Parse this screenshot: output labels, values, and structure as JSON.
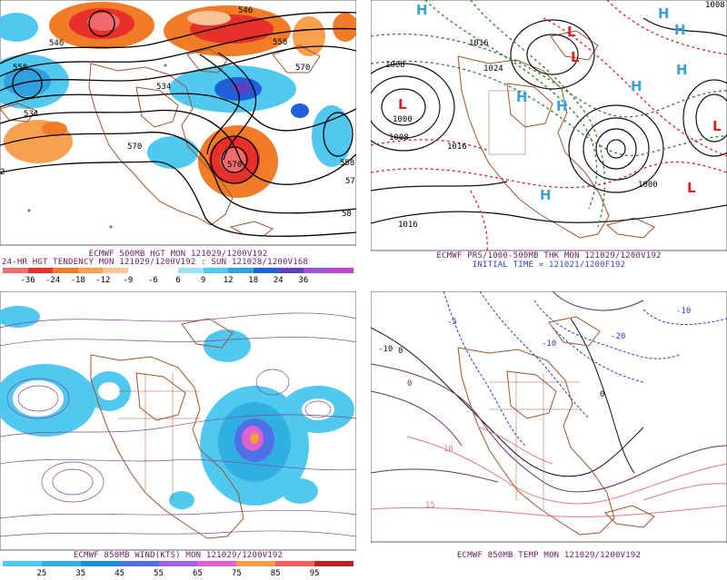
{
  "panels": {
    "tl": {
      "caption_line1": "ECMWF 500MB HGT MON 121029/1200V192",
      "caption_line2": "24-HR HGT TENDENCY MON 121029/1200V192 : SUN 121028/1200V168",
      "scale_ticks": [
        "-36",
        "-24",
        "-18",
        "-12",
        "-9",
        "-6",
        "6",
        "9",
        "12",
        "18",
        "24",
        "36"
      ],
      "scale_colors": [
        "#f06c6c",
        "#e8302a",
        "#f07c28",
        "#f8a050",
        "#f8c498",
        "#ffffff",
        "#ffffff",
        "#9ce0f4",
        "#50c8f0",
        "#30a0e0",
        "#2060d8",
        "#6040c0",
        "#a050d8",
        "#c040d0"
      ],
      "contour_labels": [
        "546",
        "558",
        "546",
        "534",
        "570",
        "558",
        "534",
        "570",
        "570",
        "58"
      ],
      "edge_labels": [
        "2",
        "558",
        "57"
      ]
    },
    "tr": {
      "caption_line1": "ECMWF PRS/1000-500MB THK MON 121029/1200V192",
      "caption_line2": "INITIAL TIME = 121021/1200F192",
      "high_label": "H",
      "low_label": "L",
      "isobar_labels": [
        "1008",
        "1016",
        "1024",
        "1000",
        "1008",
        "1016",
        "1016",
        "1000",
        "1008"
      ]
    },
    "bl": {
      "caption_line1": "ECMWF 850MB WIND(KTS) MON 121029/1200V192",
      "scale_ticks": [
        "25",
        "35",
        "45",
        "55",
        "65",
        "75",
        "85",
        "95"
      ],
      "scale_colors": [
        "#50c8f0",
        "#30b0e0",
        "#1890d8",
        "#5070e8",
        "#a060e8",
        "#e060d0",
        "#f0a040",
        "#f06060",
        "#c02020"
      ]
    },
    "br": {
      "caption_line1": "ECMWF 850MB TEMP MON 121029/1200V192",
      "isotherm_labels": [
        "-10",
        "-5",
        "0",
        "0",
        "-10",
        "-20",
        "-10",
        "0",
        "10",
        "15"
      ]
    }
  },
  "colors": {
    "coast": "#a0522d",
    "height_contour": "#000000",
    "thickness_warm": "#e02020",
    "thickness_cold": "#2e7d32",
    "isobar": "#101010",
    "highs": "#3aa0d8",
    "lows": "#e02020",
    "wind_lines": "#7a4a9a",
    "temp_warm": "#e87878",
    "temp_cold": "#2040d0",
    "temp_mid": "#6a2a6a"
  }
}
